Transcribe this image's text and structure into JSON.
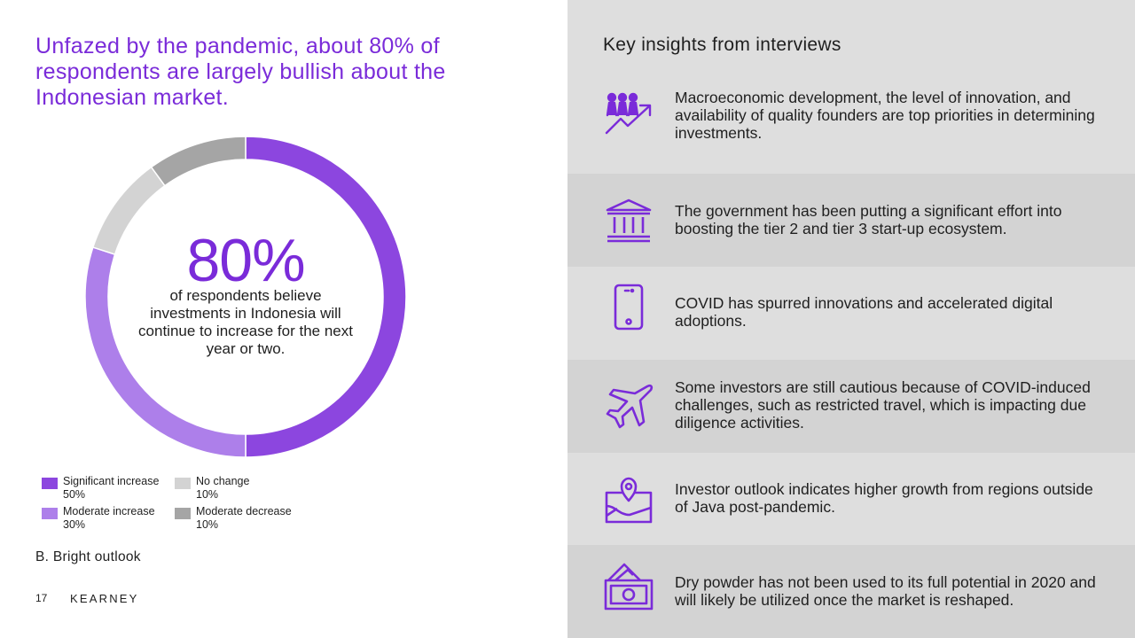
{
  "headline": "Unfazed by the pandemic, about 80% of respondents are largely bullish about the Indonesian market.",
  "donut": {
    "big_value": "80%",
    "center_text": "of respondents believe investments in Indonesia will continue to increase for the next year or two."
  },
  "chart_data": {
    "type": "pie",
    "donut": true,
    "series": [
      {
        "name": "Significant increase",
        "value": 50,
        "label": "50%",
        "color": "#8c46df"
      },
      {
        "name": "Moderate increase",
        "value": 30,
        "label": "30%",
        "color": "#ad7fea"
      },
      {
        "name": "No change",
        "value": 10,
        "label": "10%",
        "color": "#d3d3d3"
      },
      {
        "name": "Moderate decrease",
        "value": 10,
        "label": "10%",
        "color": "#a5a5a5"
      }
    ]
  },
  "subtitle": "B. Bright outlook",
  "footer": {
    "page_number": "17",
    "logo_text": "KEARNEY"
  },
  "insights_panel": {
    "title": "Key insights from interviews",
    "icon_color": "#7a2bd9",
    "items": [
      {
        "icon": "people-growth-icon",
        "text": "Macroeconomic development, the level of innovation, and availability of quality founders are top priorities in determining investments."
      },
      {
        "icon": "government-building-icon",
        "text": "The government has been putting a significant effort into boosting the tier 2 and tier 3 start-up ecosystem."
      },
      {
        "icon": "smartphone-icon",
        "text": "COVID has spurred innovations and accelerated digital adoptions."
      },
      {
        "icon": "airplane-icon",
        "text": "Some investors are still cautious because of COVID-induced challenges, such as restricted travel, which is impacting due diligence activities."
      },
      {
        "icon": "map-pin-icon",
        "text": "Investor outlook indicates higher growth from regions outside of Java post-pandemic."
      },
      {
        "icon": "money-icon",
        "text": "Dry powder has not been used to its full potential in 2020 and will likely be utilized once the market is reshaped."
      }
    ]
  }
}
